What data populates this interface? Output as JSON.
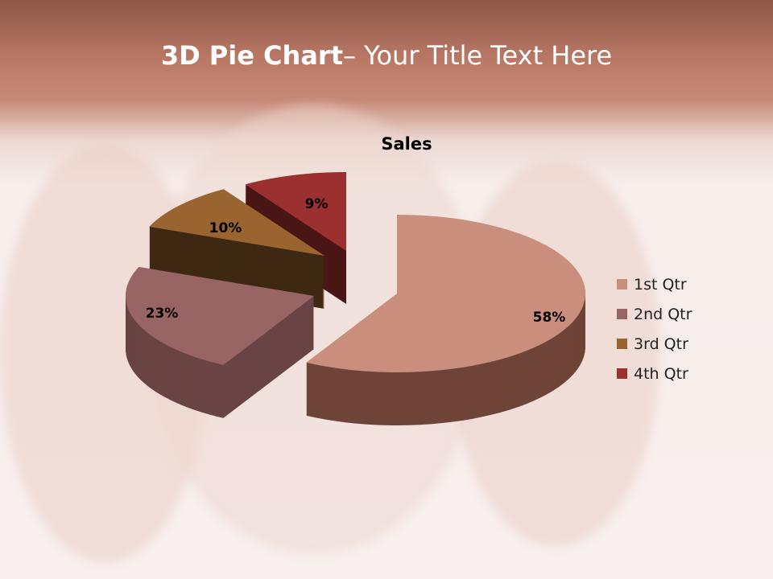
{
  "slide": {
    "title_bold": "3D Pie Chart",
    "title_rest": "– Your Title Text Here"
  },
  "chart_data": {
    "type": "pie",
    "style": "3d-exploded",
    "title": "Sales",
    "categories": [
      "1st Qtr",
      "2nd Qtr",
      "3rd Qtr",
      "4th Qtr"
    ],
    "values": [
      58,
      23,
      10,
      9
    ],
    "data_labels": [
      "58%",
      "23%",
      "10%",
      "9%"
    ],
    "colors": [
      "#c98f7c",
      "#986464",
      "#9a6430",
      "#9c3030"
    ],
    "side_colors": [
      "#6e4438",
      "#6a4444",
      "#3e2812",
      "#4a1616"
    ],
    "legend_position": "right"
  }
}
